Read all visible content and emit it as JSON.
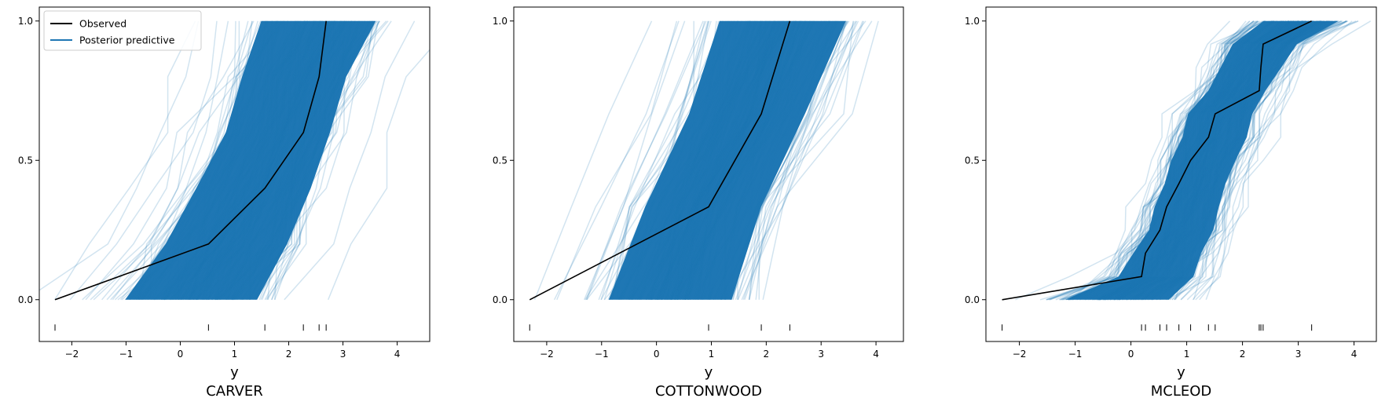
{
  "chart_data": [
    {
      "type": "line",
      "title": "CARVER",
      "xlabel": "y",
      "ylabel": "",
      "xlim": [
        -2.6,
        4.6
      ],
      "ylim": [
        -0.15,
        1.05
      ],
      "xticks": [
        -2,
        -1,
        0,
        1,
        2,
        3,
        4
      ],
      "yticks": [
        0.0,
        0.5,
        1.0
      ],
      "ytick_labels": [
        "0.0",
        "0.5",
        "1.0"
      ],
      "grid": false,
      "legend": {
        "placement": "top-left",
        "entries": [
          {
            "label": "Observed",
            "color": "#000000"
          },
          {
            "label": "Posterior predictive",
            "color": "#1f77b4"
          }
        ]
      },
      "rug": [
        -2.31,
        0.52,
        1.56,
        2.27,
        2.56,
        2.69
      ],
      "series": [
        {
          "name": "Observed",
          "color": "#000000",
          "x": [
            -2.31,
            0.52,
            1.56,
            2.27,
            2.56,
            2.69
          ],
          "y": [
            0.0,
            0.2,
            0.4,
            0.6,
            0.8,
            1.0
          ]
        },
        {
          "name": "Posterior predictive",
          "color": "#1f77b4",
          "band": {
            "x_low": [
              -1.7,
              -0.9,
              -0.3,
              0.3,
              0.6,
              0.9
            ],
            "x_high": [
              2.1,
              2.6,
              3.0,
              3.3,
              3.6,
              4.2
            ],
            "y": [
              0.0,
              0.2,
              0.4,
              0.6,
              0.8,
              1.0
            ]
          }
        }
      ]
    },
    {
      "type": "line",
      "title": "COTTONWOOD",
      "xlabel": "y",
      "ylabel": "",
      "xlim": [
        -2.6,
        4.5
      ],
      "ylim": [
        -0.15,
        1.05
      ],
      "xticks": [
        -2,
        -1,
        0,
        1,
        2,
        3,
        4
      ],
      "yticks": [
        0.0,
        0.5,
        1.0
      ],
      "ytick_labels": [
        "0.0",
        "0.5",
        "1.0"
      ],
      "grid": false,
      "rug": [
        -2.31,
        0.95,
        1.91,
        2.43
      ],
      "series": [
        {
          "name": "Observed",
          "color": "#000000",
          "x": [
            -2.31,
            0.95,
            1.91,
            2.43
          ],
          "y": [
            0.0,
            0.333,
            0.667,
            1.0
          ]
        },
        {
          "name": "Posterior predictive",
          "color": "#1f77b4",
          "band": {
            "x_low": [
              -1.5,
              -0.8,
              0.0,
              0.5
            ],
            "x_high": [
              2.0,
              2.5,
              3.3,
              4.1
            ],
            "y": [
              0.0,
              0.333,
              0.667,
              1.0
            ]
          }
        }
      ]
    },
    {
      "type": "line",
      "title": "MCLEOD",
      "xlabel": "y",
      "ylabel": "",
      "xlim": [
        -2.6,
        4.4
      ],
      "ylim": [
        -0.15,
        1.05
      ],
      "xticks": [
        -2,
        -1,
        0,
        1,
        2,
        3,
        4
      ],
      "yticks": [
        0.0,
        0.5,
        1.0
      ],
      "ytick_labels": [
        "0.0",
        "0.5",
        "1.0"
      ],
      "grid": false,
      "rug": [
        -2.31,
        0.19,
        0.26,
        0.52,
        0.64,
        0.86,
        1.07,
        1.39,
        1.51,
        2.3,
        2.33,
        2.37,
        3.24
      ],
      "series": [
        {
          "name": "Observed",
          "color": "#000000",
          "x": [
            -2.31,
            0.19,
            0.26,
            0.52,
            0.64,
            0.86,
            1.07,
            1.39,
            1.51,
            2.3,
            2.33,
            2.37,
            3.24
          ],
          "y": [
            0.0,
            0.083,
            0.167,
            0.25,
            0.333,
            0.417,
            0.5,
            0.583,
            0.667,
            0.75,
            0.833,
            0.917,
            1.0
          ]
        },
        {
          "name": "Posterior predictive",
          "color": "#1f77b4",
          "band": {
            "x_low": [
              -1.7,
              -0.6,
              -0.3,
              0.0,
              0.1,
              0.3,
              0.4,
              0.6,
              0.7,
              1.1,
              1.3,
              1.5,
              2.0
            ],
            "x_high": [
              1.2,
              1.5,
              1.6,
              1.8,
              1.9,
              2.0,
              2.2,
              2.4,
              2.5,
              2.7,
              3.0,
              3.3,
              4.1
            ],
            "y": [
              0.0,
              0.083,
              0.167,
              0.25,
              0.333,
              0.417,
              0.5,
              0.583,
              0.667,
              0.75,
              0.833,
              0.917,
              1.0
            ]
          }
        }
      ]
    }
  ]
}
